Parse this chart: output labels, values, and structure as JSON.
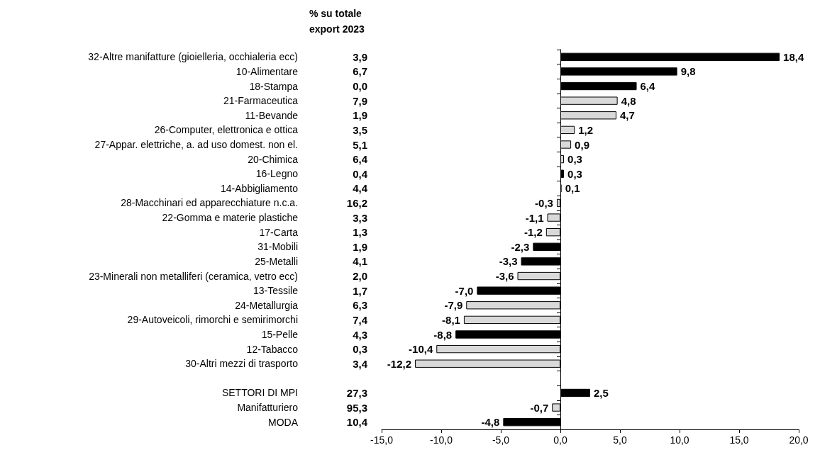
{
  "chart_data": {
    "type": "bar",
    "orientation": "horizontal",
    "value_labels": [
      "18,4",
      "9,8",
      "6,4",
      "4,8",
      "4,7",
      "1,2",
      "0,9",
      "0,3",
      "0,3",
      "0,1",
      "-0,3",
      "-1,1",
      "-1,2",
      "-2,3",
      "-3,3",
      "-3,6",
      "-7,0",
      "-7,9",
      "-8,1",
      "-8,8",
      "-10,4",
      "-12,2",
      null,
      "2,5",
      "-0,7",
      "-4,8"
    ],
    "categories": [
      "32-Altre manifatture (gioielleria, occhialeria ecc)",
      "10-Alimentare",
      "18-Stampa",
      "21-Farmaceutica",
      "11-Bevande",
      "26-Computer, elettronica e ottica",
      "27-Appar. elettriche, a. ad uso domest. non el.",
      "20-Chimica",
      "16-Legno",
      "14-Abbigliamento",
      "28-Macchinari ed apparecchiature n.c.a.",
      "22-Gomma e materie plastiche",
      "17-Carta",
      "31-Mobili",
      "25-Metalli",
      "23-Minerali non metalliferi (ceramica, vetro ecc)",
      "13-Tessile",
      "24-Metallurgia",
      "29-Autoveicoli, rimorchi e semirimorchi",
      "15-Pelle",
      "12-Tabacco",
      "30-Altri mezzi di trasporto",
      null,
      "SETTORI DI MPI",
      "Manifatturiero",
      "MODA"
    ],
    "values": [
      18.4,
      9.8,
      6.4,
      4.8,
      4.7,
      1.2,
      0.9,
      0.3,
      0.3,
      0.1,
      -0.3,
      -1.1,
      -1.2,
      -2.3,
      -3.3,
      -3.6,
      -7.0,
      -7.9,
      -8.1,
      -8.8,
      -10.4,
      -12.2,
      null,
      2.5,
      -0.7,
      -4.8
    ],
    "colors": [
      "#000000",
      "#000000",
      "#000000",
      "#d9d9d9",
      "#d9d9d9",
      "#d9d9d9",
      "#d9d9d9",
      "#d9d9d9",
      "#000000",
      "#d9d9d9",
      "#d9d9d9",
      "#d9d9d9",
      "#d9d9d9",
      "#000000",
      "#000000",
      "#d9d9d9",
      "#000000",
      "#d9d9d9",
      "#d9d9d9",
      "#000000",
      "#d9d9d9",
      "#d9d9d9",
      null,
      "#000000",
      "#d9d9d9",
      "#000000"
    ],
    "xlim": [
      -15,
      20
    ],
    "xticks": [
      {
        "value": -15,
        "label": "-15,0"
      },
      {
        "value": -10,
        "label": "-10,0"
      },
      {
        "value": -5,
        "label": "-5,0"
      },
      {
        "value": 0,
        "label": "0,0"
      },
      {
        "value": 5,
        "label": "5,0"
      },
      {
        "value": 10,
        "label": "10,0"
      },
      {
        "value": 15,
        "label": "15,0"
      },
      {
        "value": 20,
        "label": "20,0"
      }
    ],
    "annotations": [
      "% su totale\nexport 2023",
      "3,9",
      "6,7",
      "0,0",
      "7,9",
      "1,9",
      "3,5",
      "5,1",
      "6,4",
      "0,4",
      "4,4",
      "16,2",
      "3,3",
      "1,3",
      "1,9",
      "4,1",
      "2,0",
      "1,7",
      "6,3",
      "7,4",
      "4,3",
      "0,3",
      "3,4",
      "27,3",
      "95,3",
      "10,4"
    ]
  }
}
